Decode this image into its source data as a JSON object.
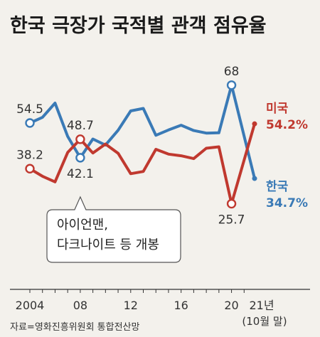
{
  "title": "한국 극장가 국적별 관객 점유율",
  "source": "자료=영화진흥위원회 통합전산망",
  "annotation": [
    "아이언맨,",
    "다크나이트 등 개봉"
  ],
  "colors": {
    "korea": "#3a7ab6",
    "us": "#c0392f",
    "axis": "#333333",
    "background": "#f3f1ec"
  },
  "chart_data": {
    "type": "line",
    "x_ticks": [
      {
        "x": 2004,
        "label": "2004",
        "sub": ""
      },
      {
        "x": 2008,
        "label": "08",
        "sub": ""
      },
      {
        "x": 2012,
        "label": "12",
        "sub": ""
      },
      {
        "x": 2016,
        "label": "16",
        "sub": ""
      },
      {
        "x": 2020,
        "label": "20",
        "sub": ""
      },
      {
        "x": 2021.83,
        "label": "21년",
        "sub": "(10월 말)"
      }
    ],
    "xlim": [
      2004,
      2021.83
    ],
    "ylim": [
      20,
      72
    ],
    "series": [
      {
        "name": "한국",
        "end_value_label": "34.7%",
        "points": [
          {
            "x": 2004,
            "y": 54.5
          },
          {
            "x": 2005,
            "y": 56.5
          },
          {
            "x": 2006,
            "y": 61.6
          },
          {
            "x": 2007,
            "y": 49.7
          },
          {
            "x": 2008,
            "y": 42.1
          },
          {
            "x": 2009,
            "y": 48.8
          },
          {
            "x": 2010,
            "y": 46.6
          },
          {
            "x": 2011,
            "y": 51.9
          },
          {
            "x": 2012,
            "y": 58.8
          },
          {
            "x": 2013,
            "y": 59.7
          },
          {
            "x": 2014,
            "y": 50.1
          },
          {
            "x": 2015,
            "y": 52.0
          },
          {
            "x": 2016,
            "y": 53.7
          },
          {
            "x": 2017,
            "y": 51.8
          },
          {
            "x": 2018,
            "y": 50.9
          },
          {
            "x": 2019,
            "y": 51.0
          },
          {
            "x": 2020,
            "y": 68.0
          },
          {
            "x": 2021.83,
            "y": 34.7
          }
        ],
        "labels": [
          {
            "x": 2004,
            "y": 54.5,
            "text": "54.5",
            "pos": "above"
          },
          {
            "x": 2008,
            "y": 42.1,
            "text": "42.1",
            "pos": "below"
          },
          {
            "x": 2020,
            "y": 68.0,
            "text": "68",
            "pos": "above"
          }
        ]
      },
      {
        "name": "미국",
        "end_value_label": "54.2%",
        "points": [
          {
            "x": 2004,
            "y": 38.2
          },
          {
            "x": 2005,
            "y": 35.5
          },
          {
            "x": 2006,
            "y": 33.5
          },
          {
            "x": 2007,
            "y": 44.0
          },
          {
            "x": 2008,
            "y": 48.7
          },
          {
            "x": 2009,
            "y": 43.8
          },
          {
            "x": 2010,
            "y": 47.0
          },
          {
            "x": 2011,
            "y": 43.7
          },
          {
            "x": 2012,
            "y": 36.4
          },
          {
            "x": 2013,
            "y": 37.2
          },
          {
            "x": 2014,
            "y": 45.1
          },
          {
            "x": 2015,
            "y": 43.4
          },
          {
            "x": 2016,
            "y": 42.8
          },
          {
            "x": 2017,
            "y": 41.8
          },
          {
            "x": 2018,
            "y": 45.5
          },
          {
            "x": 2019,
            "y": 46.0
          },
          {
            "x": 2020,
            "y": 25.7
          },
          {
            "x": 2021.83,
            "y": 54.2
          }
        ],
        "labels": [
          {
            "x": 2004,
            "y": 38.2,
            "text": "38.2",
            "pos": "above"
          },
          {
            "x": 2008,
            "y": 48.7,
            "text": "48.7",
            "pos": "above"
          },
          {
            "x": 2020,
            "y": 25.7,
            "text": "25.7",
            "pos": "below"
          }
        ]
      }
    ]
  }
}
